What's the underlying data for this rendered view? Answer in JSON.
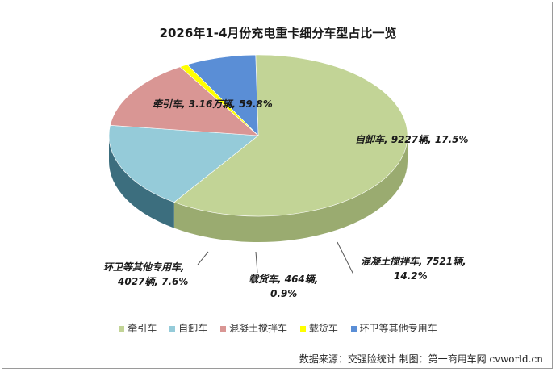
{
  "chart_data": {
    "type": "pie",
    "title": "2026年1-4月份充电重卡细分车型占比一览",
    "slices": [
      {
        "name": "牵引车",
        "value": 59.8,
        "label": "牵引车, 3.16万辆, 59.8%",
        "color": "#c2d496",
        "side": "#9aab70"
      },
      {
        "name": "自卸车",
        "value": 17.5,
        "label": "自卸车, 9227辆, 17.5%",
        "color": "#95cbd9",
        "side": "#3c6e7e"
      },
      {
        "name": "混凝土搅拌车",
        "value": 14.2,
        "label_lines": [
          "混凝土搅拌车, 7521辆,",
          "14.2%"
        ],
        "color": "#d99694",
        "side": "#5a2a28"
      },
      {
        "name": "载货车",
        "value": 0.9,
        "label_lines": [
          "载货车, 464辆,",
          "0.9%"
        ],
        "color": "#ffff00",
        "side": "#a8a800"
      },
      {
        "name": "环卫等其他专用车",
        "value": 7.6,
        "label_lines": [
          "环卫等其他专用车,",
          "4027辆, 7.6%"
        ],
        "color": "#5a8ed6",
        "side": "#223f75"
      }
    ],
    "legend": [
      "牵引车",
      "自卸车",
      "混凝土搅拌车",
      "载货车",
      "环卫等其他专用车"
    ],
    "legend_position": "bottom"
  },
  "source": "数据来源：交强险统计  制图：第一商用车网 cvworld.cn"
}
